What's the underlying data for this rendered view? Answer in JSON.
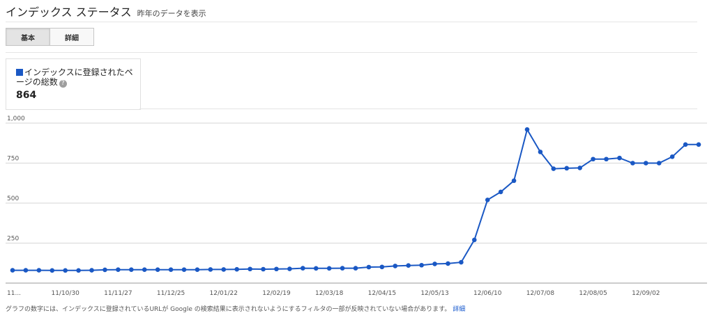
{
  "header": {
    "title": "インデックス ステータス",
    "subtitle": "昨年のデータを表示"
  },
  "tabs": [
    {
      "label": "基本",
      "active": true
    },
    {
      "label": "詳細",
      "active": false
    }
  ],
  "summary": {
    "legend_label": "インデックスに登録されたページの総数",
    "help_icon": "question-circle-icon",
    "count": "864",
    "color": "#1a58c4"
  },
  "footer": {
    "text": "グラフの数字には、インデックスに登録されているURLが Google の検索結果に表示されないようにするフィルタの一部が反映されていない場合があります。",
    "link": "詳細"
  },
  "chart_data": {
    "type": "line",
    "grid": true,
    "ylim": [
      0,
      1000
    ],
    "y_ticks": [
      "250",
      "500",
      "750",
      "1,000"
    ],
    "x_tick_labels": [
      "11...",
      "11/10/30",
      "11/11/27",
      "11/12/25",
      "12/01/22",
      "12/02/19",
      "12/03/18",
      "12/04/15",
      "12/05/13",
      "12/06/10",
      "12/07/08",
      "12/08/05",
      "12/09/02"
    ],
    "series": [
      {
        "color": "#1a58c4",
        "values": [
          80,
          80,
          80,
          79,
          79,
          79,
          80,
          83,
          84,
          84,
          84,
          84,
          84,
          84,
          84,
          85,
          85,
          86,
          88,
          87,
          88,
          89,
          93,
          92,
          92,
          93,
          93,
          100,
          101,
          107,
          110,
          112,
          120,
          122,
          130,
          270,
          520,
          570,
          640,
          960,
          820,
          715,
          718,
          720,
          775,
          775,
          782,
          750,
          750,
          750,
          790,
          866,
          866
        ]
      }
    ]
  }
}
